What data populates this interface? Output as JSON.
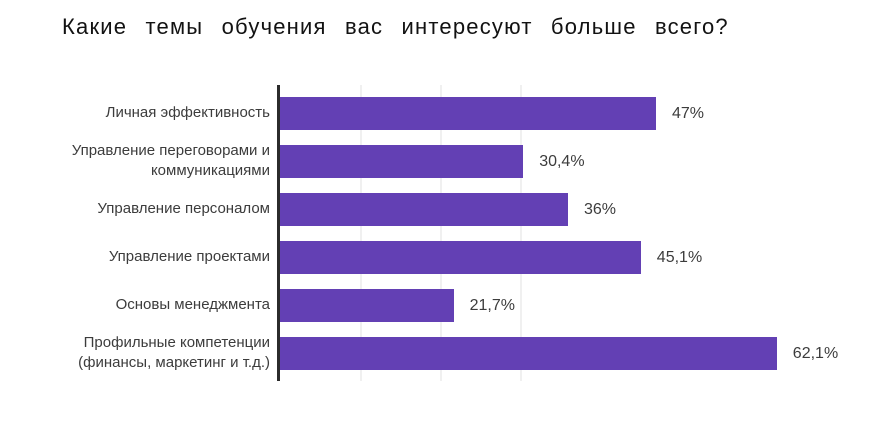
{
  "chart_data": {
    "type": "bar",
    "orientation": "horizontal",
    "title": "Какие темы обучения вас интересуют больше всего?",
    "categories": [
      "Личная эффективность",
      "Управление переговорами и\nкоммуникациями",
      "Управление персоналом",
      "Управление проектами",
      "Основы менеджмента",
      "Профильные компетенции\n(финансы, маркетинг и т.д.)"
    ],
    "values": [
      47,
      30.4,
      36,
      45.1,
      21.7,
      62.1
    ],
    "value_labels": [
      "47%",
      "30,4%",
      "36%",
      "45,1%",
      "21,7%",
      "62,1%"
    ],
    "xlabel": "",
    "ylabel": "",
    "xlim": [
      0,
      65
    ],
    "gridlines_percent": [
      10,
      20,
      30
    ],
    "grid": "vertical-faint",
    "legend": "none",
    "colors": {
      "bar": "#6340b4",
      "axis_line": "#2b2b2b",
      "gridline": "#f0f0f0",
      "category_text": "#3c3c3c",
      "value_text": "#3c3c3c",
      "title_text": "#121212",
      "background": "#ffffff"
    }
  }
}
